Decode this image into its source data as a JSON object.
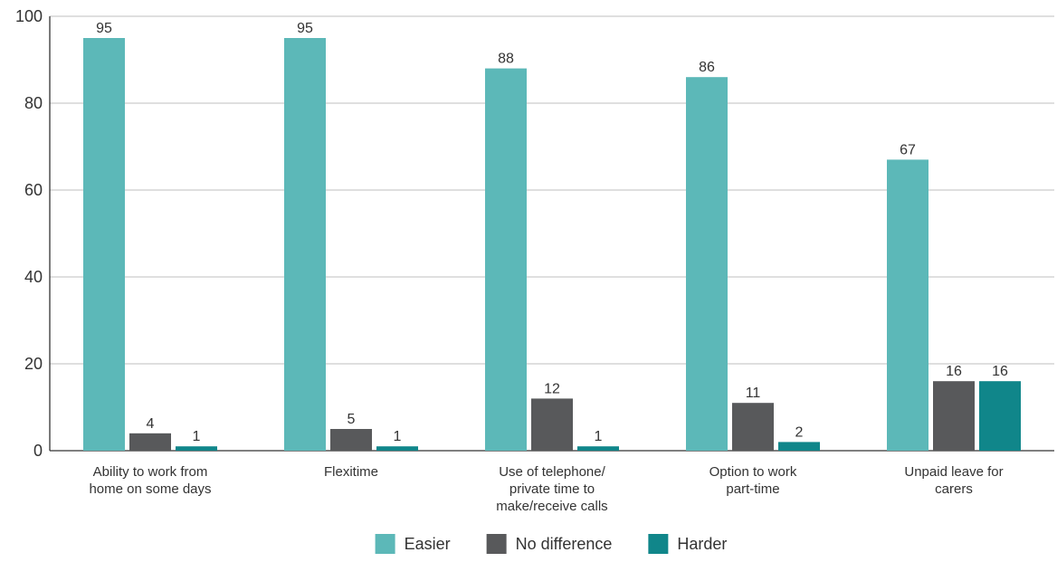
{
  "chart_data": {
    "type": "bar",
    "title": "",
    "xlabel": "",
    "ylabel": "",
    "ylim": [
      0,
      100
    ],
    "yticks": [
      0,
      20,
      40,
      60,
      80,
      100
    ],
    "grid": true,
    "legend_position": "bottom",
    "categories": [
      [
        "Ability to work from",
        "home on some days"
      ],
      [
        "Flexitime"
      ],
      [
        "Use of telephone/",
        "private time to",
        "make/receive calls"
      ],
      [
        "Option to work",
        "part-time"
      ],
      [
        "Unpaid leave for",
        "carers"
      ]
    ],
    "series": [
      {
        "name": "Easier",
        "color": "#5cb8b8",
        "values": [
          95,
          95,
          88,
          86,
          67
        ]
      },
      {
        "name": "No difference",
        "color": "#58595b",
        "values": [
          4,
          5,
          12,
          11,
          16
        ]
      },
      {
        "name": "Harder",
        "color": "#10868a",
        "values": [
          1,
          1,
          1,
          2,
          16
        ]
      }
    ]
  }
}
